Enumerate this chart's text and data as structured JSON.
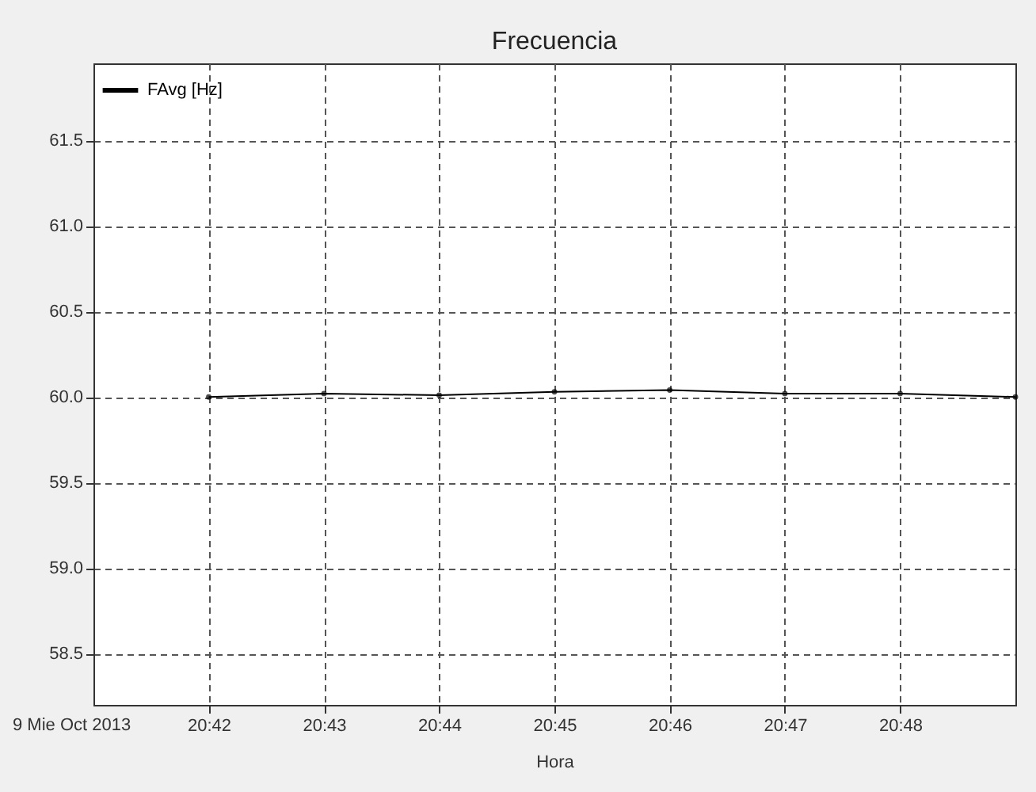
{
  "chart_data": {
    "type": "line",
    "title": "Frecuencia",
    "xlabel": "Hora",
    "annotations": [
      "9 Mie Oct 2013"
    ],
    "x": [
      20.7,
      20.71667,
      20.73333,
      20.75,
      20.76667,
      20.78333,
      20.8,
      20.81667
    ],
    "series": [
      {
        "name": "FAvg [Hz]",
        "color": "#000000",
        "values": [
          60.0,
          60.02,
          60.01,
          60.03,
          60.04,
          60.02,
          60.02,
          60.0
        ]
      }
    ],
    "xlim": [
      20.68333,
      20.81667
    ],
    "xticks": [
      {
        "value": 20.7,
        "label": "20:42"
      },
      {
        "value": 20.71667,
        "label": "20:43"
      },
      {
        "value": 20.73333,
        "label": "20:44"
      },
      {
        "value": 20.75,
        "label": "20:45"
      },
      {
        "value": 20.76667,
        "label": "20:46"
      },
      {
        "value": 20.78333,
        "label": "20:47"
      },
      {
        "value": 20.8,
        "label": "20:48"
      }
    ],
    "ylim": [
      58.2,
      61.95
    ],
    "yticks": [
      58.5,
      {
        "value": 59,
        "label": "59.0"
      },
      59.5,
      {
        "value": 60,
        "label": "60.0"
      },
      60.5,
      {
        "value": 61,
        "label": "61.0"
      },
      61.5
    ],
    "grid": true,
    "legend": "top left",
    "marker": "circle",
    "line_style": "solid"
  }
}
